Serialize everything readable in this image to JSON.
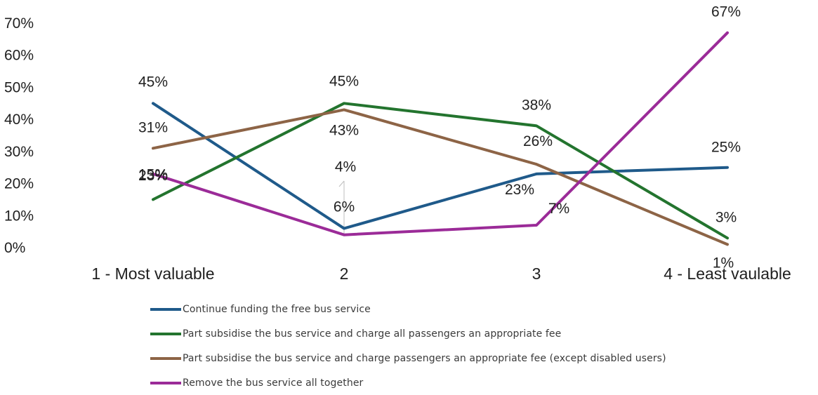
{
  "chart_data": {
    "type": "line",
    "categories": [
      "1 - Most valuable",
      "2",
      "3",
      "4 - Least vaulable"
    ],
    "ylim": [
      0,
      70
    ],
    "yticks": [
      0,
      10,
      20,
      30,
      40,
      50,
      60,
      70
    ],
    "ytick_labels": [
      "0%",
      "10%",
      "20%",
      "30%",
      "40%",
      "50%",
      "60%",
      "70%"
    ],
    "grid": false,
    "legend_position": "bottom",
    "series": [
      {
        "name": "Continue funding the free bus service",
        "color": "#1f5a8a",
        "values": [
          45,
          6,
          23,
          25
        ],
        "labels": [
          "45%",
          "6%",
          "23%",
          "25%"
        ]
      },
      {
        "name": "Part subsidise the bus service and charge all passengers an appropriate fee",
        "color": "#23742e",
        "values": [
          15,
          45,
          38,
          3
        ],
        "labels": [
          "15%",
          "45%",
          "38%",
          "3%"
        ]
      },
      {
        "name": "Part subsidise the bus service and charge passengers an appropriate fee (except disabled users)",
        "color": "#8d6446",
        "values": [
          31,
          43,
          26,
          1
        ],
        "labels": [
          "31%",
          "43%",
          "26%",
          "1%"
        ]
      },
      {
        "name": "Remove the bus service all together",
        "color": "#9b2b98",
        "values": [
          23,
          4,
          7,
          67
        ],
        "labels": [
          "23%",
          "4%",
          "7%",
          "67%"
        ]
      }
    ]
  }
}
